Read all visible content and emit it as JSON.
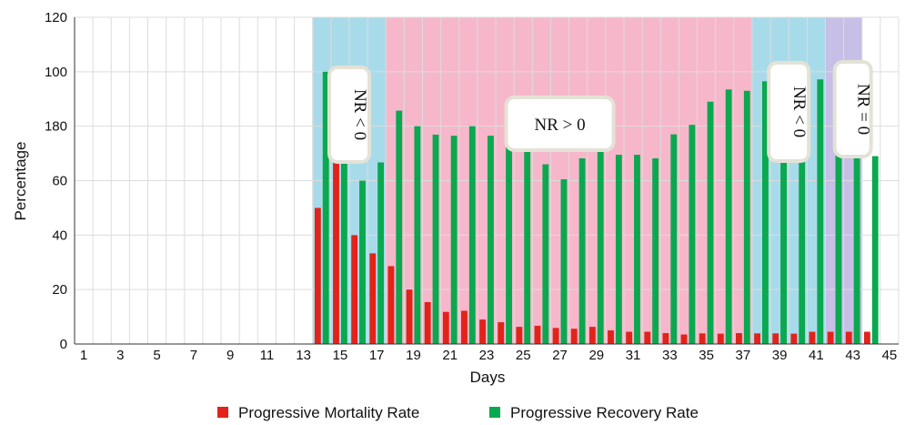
{
  "chart_data": {
    "type": "bar",
    "xlabel": "Days",
    "ylabel": "Percentage",
    "ylim": [
      0,
      120
    ],
    "y_tick_labels": [
      "0",
      "20",
      "40",
      "60",
      "80",
      "100",
      "120"
    ],
    "y_tick_label_overrides": {
      "80": "180"
    },
    "x_tick_labels": [
      "1",
      "3",
      "5",
      "7",
      "9",
      "11",
      "13",
      "15",
      "17",
      "19",
      "21",
      "23",
      "25",
      "27",
      "29",
      "31",
      "33",
      "35",
      "37",
      "39",
      "41",
      "43",
      "45"
    ],
    "x": [
      1,
      2,
      3,
      4,
      5,
      6,
      7,
      8,
      9,
      10,
      11,
      12,
      13,
      14,
      15,
      16,
      17,
      18,
      19,
      20,
      21,
      22,
      23,
      24,
      25,
      26,
      27,
      28,
      29,
      30,
      31,
      32,
      33,
      34,
      35,
      36,
      37,
      38,
      39,
      40,
      41,
      42,
      43,
      44,
      45
    ],
    "series": [
      {
        "name": "Progressive Mortality Rate",
        "color": "#e2231a",
        "values": [
          null,
          null,
          null,
          null,
          null,
          null,
          null,
          null,
          null,
          null,
          null,
          null,
          null,
          50,
          66.7,
          40,
          33.3,
          28.6,
          20,
          15.4,
          11.8,
          12.2,
          9,
          8,
          6.3,
          6.7,
          5.9,
          5.6,
          6.3,
          5,
          4.5,
          4.5,
          4,
          3.5,
          3.9,
          3.8,
          4,
          3.9,
          3.9,
          3.8,
          4.5,
          4.5,
          4.5,
          4.5,
          null
        ]
      },
      {
        "name": "Progressive Recovery Rate",
        "color": "#0aa84f",
        "values": [
          null,
          null,
          null,
          null,
          null,
          null,
          null,
          null,
          null,
          null,
          null,
          null,
          null,
          100,
          66.7,
          60,
          66.7,
          85.7,
          80,
          76.9,
          76.5,
          80,
          76.5,
          79.3,
          75,
          66,
          60.5,
          68.2,
          75,
          69.5,
          69.5,
          68.2,
          77,
          80.5,
          89,
          93.5,
          93,
          96.5,
          96,
          96,
          97.2,
          96,
          95,
          69,
          null
        ]
      }
    ],
    "background_regions": [
      {
        "from_day": 14,
        "to_day": 17,
        "color": "#a8dbea",
        "label": "NR < 0"
      },
      {
        "from_day": 18,
        "to_day": 37,
        "color": "#f7b7cb",
        "label": "NR > 0"
      },
      {
        "from_day": 38,
        "to_day": 41,
        "color": "#a8dbea",
        "label": "NR < 0"
      },
      {
        "from_day": 42,
        "to_day": 43,
        "color": "#c7bfe6",
        "label": "NR = 0"
      }
    ],
    "grid": true,
    "legend_position": "bottom"
  }
}
